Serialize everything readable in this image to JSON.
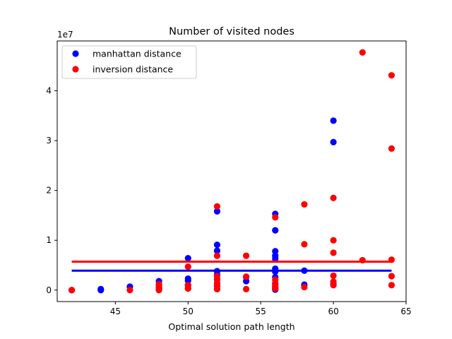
{
  "chart_data": {
    "type": "scatter",
    "title": "Number of visited nodes",
    "xlabel": "Optimal solution path length",
    "ylabel": "",
    "offset_text": "1e7",
    "xlim": [
      41.0,
      65.0
    ],
    "ylim": [
      -2300000,
      50000000
    ],
    "x_ticks": [
      45,
      50,
      55,
      60,
      65
    ],
    "y_ticks": [
      0,
      10000000,
      20000000,
      30000000,
      40000000
    ],
    "y_tick_labels": [
      "0",
      "1",
      "2",
      "3",
      "4"
    ],
    "grid": false,
    "legend_position": "upper left",
    "series": [
      {
        "name": "manhattan distance",
        "color": "#0000ff",
        "points": [
          [
            42,
            0
          ],
          [
            44,
            0
          ],
          [
            44,
            200000
          ],
          [
            46,
            700000
          ],
          [
            48,
            100000
          ],
          [
            48,
            300000
          ],
          [
            48,
            600000
          ],
          [
            48,
            1000000
          ],
          [
            48,
            1800000
          ],
          [
            50,
            400000
          ],
          [
            50,
            1000000
          ],
          [
            50,
            1900000
          ],
          [
            50,
            2300000
          ],
          [
            50,
            6400000
          ],
          [
            52,
            200000
          ],
          [
            52,
            1000000
          ],
          [
            52,
            2200000
          ],
          [
            52,
            3100000
          ],
          [
            52,
            3800000
          ],
          [
            52,
            7900000
          ],
          [
            52,
            9100000
          ],
          [
            52,
            15800000
          ],
          [
            54,
            1800000
          ],
          [
            54,
            2600000
          ],
          [
            56,
            100000
          ],
          [
            56,
            500000
          ],
          [
            56,
            1200000
          ],
          [
            56,
            2600000
          ],
          [
            56,
            3700000
          ],
          [
            56,
            4300000
          ],
          [
            56,
            6300000
          ],
          [
            56,
            6900000
          ],
          [
            56,
            7800000
          ],
          [
            56,
            12000000
          ],
          [
            56,
            15300000
          ],
          [
            58,
            1100000
          ],
          [
            58,
            3900000
          ],
          [
            60,
            1200000
          ],
          [
            60,
            29700000
          ],
          [
            60,
            34000000
          ]
        ],
        "hline": 3900000
      },
      {
        "name": "inversion distance",
        "color": "#ff0000",
        "points": [
          [
            42,
            0
          ],
          [
            46,
            0
          ],
          [
            48,
            0
          ],
          [
            48,
            300000
          ],
          [
            48,
            600000
          ],
          [
            48,
            1200000
          ],
          [
            50,
            300000
          ],
          [
            50,
            1000000
          ],
          [
            50,
            4700000
          ],
          [
            52,
            200000
          ],
          [
            52,
            800000
          ],
          [
            52,
            1400000
          ],
          [
            52,
            2100000
          ],
          [
            52,
            2800000
          ],
          [
            52,
            6900000
          ],
          [
            52,
            16800000
          ],
          [
            54,
            200000
          ],
          [
            54,
            2700000
          ],
          [
            54,
            6900000
          ],
          [
            56,
            300000
          ],
          [
            56,
            800000
          ],
          [
            56,
            1400000
          ],
          [
            56,
            2100000
          ],
          [
            56,
            14600000
          ],
          [
            58,
            600000
          ],
          [
            58,
            9200000
          ],
          [
            58,
            17200000
          ],
          [
            60,
            1000000
          ],
          [
            60,
            1700000
          ],
          [
            60,
            2900000
          ],
          [
            60,
            7500000
          ],
          [
            60,
            10000000
          ],
          [
            60,
            18500000
          ],
          [
            62,
            6000000
          ],
          [
            62,
            47700000
          ],
          [
            64,
            1000000
          ],
          [
            64,
            2800000
          ],
          [
            64,
            6100000
          ],
          [
            64,
            28400000
          ],
          [
            64,
            43100000
          ]
        ],
        "hline": 5700000
      }
    ]
  }
}
